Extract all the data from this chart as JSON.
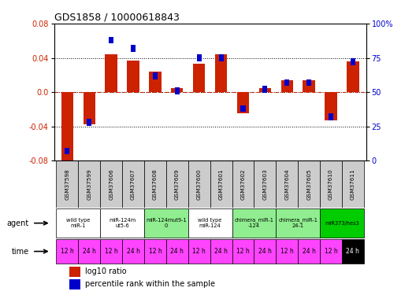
{
  "title": "GDS1858 / 10000618843",
  "samples": [
    "GSM37598",
    "GSM37599",
    "GSM37606",
    "GSM37607",
    "GSM37608",
    "GSM37609",
    "GSM37600",
    "GSM37601",
    "GSM37602",
    "GSM37603",
    "GSM37604",
    "GSM37605",
    "GSM37610",
    "GSM37611"
  ],
  "log10_ratio": [
    -0.08,
    -0.038,
    0.044,
    0.037,
    0.024,
    0.005,
    0.033,
    0.044,
    -0.025,
    0.005,
    0.014,
    0.014,
    -0.033,
    0.036
  ],
  "percentile": [
    7,
    28,
    88,
    82,
    62,
    51,
    75,
    75,
    38,
    52,
    57,
    57,
    32,
    72
  ],
  "ylim": [
    -0.08,
    0.08
  ],
  "yticks_left": [
    -0.08,
    -0.04,
    0.0,
    0.04,
    0.08
  ],
  "yticks_right": [
    0,
    25,
    50,
    75,
    100
  ],
  "ytick_right_labels": [
    "0",
    "25",
    "50",
    "75",
    "100%"
  ],
  "agent_groups": [
    {
      "label": "wild type\nmiR-1",
      "cols": [
        0,
        1
      ],
      "color": "#ffffff"
    },
    {
      "label": "miR-124m\nut5-6",
      "cols": [
        2,
        3
      ],
      "color": "#ffffff"
    },
    {
      "label": "miR-124mut9-1\n0",
      "cols": [
        4,
        5
      ],
      "color": "#90ee90"
    },
    {
      "label": "wild type\nmiR-124",
      "cols": [
        6,
        7
      ],
      "color": "#ffffff"
    },
    {
      "label": "chimera_miR-1\n-124",
      "cols": [
        8,
        9
      ],
      "color": "#90ee90"
    },
    {
      "label": "chimera_miR-1\n24-1",
      "cols": [
        10,
        11
      ],
      "color": "#90ee90"
    },
    {
      "label": "miR373/hes3",
      "cols": [
        12,
        13
      ],
      "color": "#00cc00"
    }
  ],
  "time_labels": [
    "12 h",
    "24 h",
    "12 h",
    "24 h",
    "12 h",
    "24 h",
    "12 h",
    "24 h",
    "12 h",
    "24 h",
    "12 h",
    "24 h",
    "12 h",
    "24 h"
  ],
  "last_time_black": 13,
  "bar_color_red": "#cc2200",
  "bar_color_blue": "#0000cc",
  "sample_bg_color": "#cccccc",
  "time_bg_color": "#ff44ff",
  "legend_red_label": "log10 ratio",
  "legend_blue_label": "percentile rank within the sample"
}
